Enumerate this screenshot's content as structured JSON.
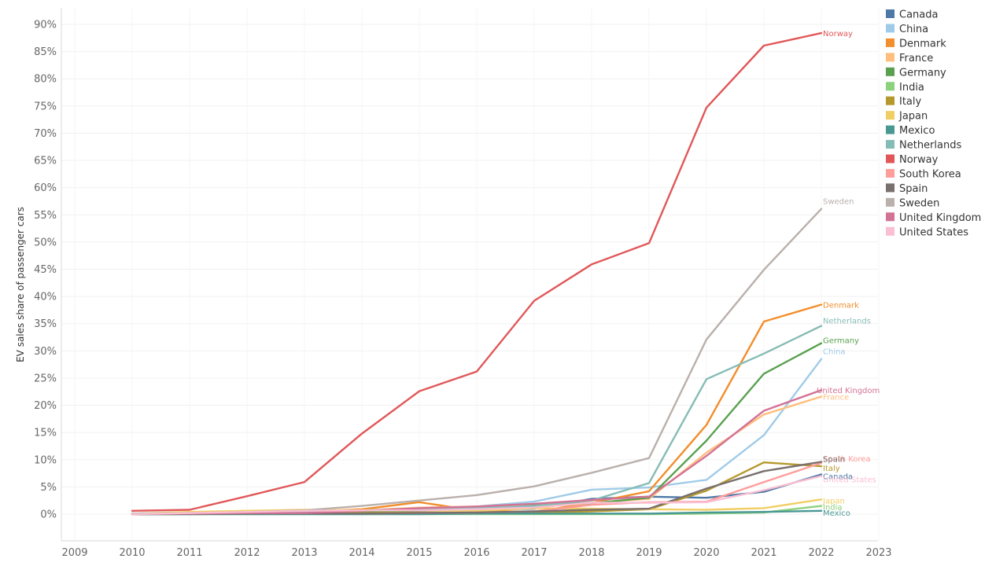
{
  "chart_data": {
    "type": "line",
    "title": "",
    "xlabel": "",
    "ylabel": "EV sales share of passenger cars",
    "xlim": [
      2009,
      2023
    ],
    "ylim": [
      -5,
      90
    ],
    "x_ticks": [
      "2009",
      "2010",
      "2011",
      "2012",
      "2013",
      "2014",
      "2015",
      "2016",
      "2017",
      "2018",
      "2019",
      "2020",
      "2021",
      "2022",
      "2023"
    ],
    "y_ticks": [
      "0%",
      "5%",
      "10%",
      "15%",
      "20%",
      "25%",
      "30%",
      "35%",
      "40%",
      "45%",
      "50%",
      "55%",
      "60%",
      "65%",
      "70%",
      "75%",
      "80%",
      "85%",
      "90%"
    ],
    "legend_position": "top-right",
    "series": [
      {
        "name": "Canada",
        "color": "#4e79a7",
        "x": [
          2011,
          2012,
          2013,
          2014,
          2015,
          2016,
          2017,
          2018,
          2019,
          2020,
          2021,
          2022
        ],
        "values": [
          0.1,
          0.2,
          0.3,
          0.4,
          0.6,
          0.8,
          1.0,
          2.8,
          3.2,
          3.0,
          4.1,
          7.3
        ],
        "end_label": "Canada"
      },
      {
        "name": "China",
        "color": "#a0cbe8",
        "x": [
          2010,
          2011,
          2012,
          2013,
          2014,
          2015,
          2016,
          2017,
          2018,
          2019,
          2020,
          2021,
          2022
        ],
        "values": [
          0.0,
          0.1,
          0.1,
          0.1,
          0.3,
          1.0,
          1.4,
          2.3,
          4.5,
          4.9,
          6.3,
          14.5,
          28.5
        ],
        "end_label": "China"
      },
      {
        "name": "Denmark",
        "color": "#f28e2b",
        "x": [
          2010,
          2011,
          2012,
          2013,
          2014,
          2015,
          2016,
          2017,
          2018,
          2019,
          2020,
          2021,
          2022
        ],
        "values": [
          0.1,
          0.3,
          0.4,
          0.5,
          0.9,
          2.2,
          0.6,
          0.4,
          2.1,
          4.2,
          16.4,
          35.4,
          38.5
        ],
        "end_label": "Denmark"
      },
      {
        "name": "France",
        "color": "#ffbe7d",
        "x": [
          2010,
          2011,
          2012,
          2013,
          2014,
          2015,
          2016,
          2017,
          2018,
          2019,
          2020,
          2021,
          2022
        ],
        "values": [
          0.0,
          0.1,
          0.3,
          0.5,
          0.7,
          1.2,
          1.4,
          1.7,
          2.1,
          2.8,
          11.3,
          18.3,
          21.6
        ],
        "end_label": "France"
      },
      {
        "name": "Germany",
        "color": "#59a14f",
        "x": [
          2010,
          2011,
          2012,
          2013,
          2014,
          2015,
          2016,
          2017,
          2018,
          2019,
          2020,
          2021,
          2022
        ],
        "values": [
          0.0,
          0.1,
          0.1,
          0.2,
          0.4,
          0.7,
          0.7,
          1.6,
          2.0,
          3.0,
          13.5,
          25.8,
          31.4
        ],
        "end_label": "Germany"
      },
      {
        "name": "India",
        "color": "#8cd17d",
        "x": [
          2010,
          2011,
          2012,
          2013,
          2014,
          2015,
          2016,
          2017,
          2018,
          2019,
          2020,
          2021,
          2022
        ],
        "values": [
          0.0,
          0.0,
          0.0,
          0.0,
          0.0,
          0.0,
          0.0,
          0.0,
          0.0,
          0.0,
          0.1,
          0.3,
          1.5
        ],
        "end_label": "India"
      },
      {
        "name": "Italy",
        "color": "#b6992d",
        "x": [
          2010,
          2011,
          2012,
          2013,
          2014,
          2015,
          2016,
          2017,
          2018,
          2019,
          2020,
          2021,
          2022
        ],
        "values": [
          0.0,
          0.1,
          0.1,
          0.1,
          0.2,
          0.3,
          0.3,
          0.3,
          0.5,
          0.9,
          4.3,
          9.5,
          8.8
        ],
        "end_label": "Italy"
      },
      {
        "name": "Japan",
        "color": "#f1ce63",
        "x": [
          2010,
          2011,
          2012,
          2013,
          2014,
          2015,
          2016,
          2017,
          2018,
          2019,
          2020,
          2021,
          2022
        ],
        "values": [
          0.1,
          0.4,
          0.6,
          0.8,
          0.7,
          0.7,
          0.6,
          1.1,
          1.0,
          0.9,
          0.8,
          1.1,
          2.7
        ],
        "end_label": "Japan"
      },
      {
        "name": "Mexico",
        "color": "#499894",
        "x": [
          2010,
          2011,
          2012,
          2013,
          2014,
          2015,
          2016,
          2017,
          2018,
          2019,
          2020,
          2021,
          2022
        ],
        "values": [
          0.0,
          0.0,
          0.0,
          0.0,
          0.0,
          0.0,
          0.1,
          0.1,
          0.1,
          0.1,
          0.3,
          0.4,
          0.6
        ],
        "end_label": "Mexico"
      },
      {
        "name": "Netherlands",
        "color": "#86bcb6",
        "x": [
          2010,
          2011,
          2012,
          2013,
          2014,
          2015,
          2016,
          2017,
          2018,
          2019,
          2020,
          2021,
          2022
        ],
        "values": [
          0.1,
          0.2,
          0.3,
          0.4,
          0.7,
          1.0,
          1.1,
          1.5,
          2.5,
          5.7,
          24.8,
          29.5,
          34.6
        ],
        "end_label": "Netherlands"
      },
      {
        "name": "Norway",
        "color": "#e15759",
        "x": [
          2010,
          2011,
          2012,
          2013,
          2014,
          2015,
          2016,
          2017,
          2018,
          2019,
          2020,
          2021,
          2022
        ],
        "values": [
          0.6,
          0.8,
          3.3,
          5.9,
          14.8,
          22.6,
          26.2,
          39.2,
          45.9,
          49.8,
          74.7,
          86.1,
          88.4
        ],
        "end_label": "Norway"
      },
      {
        "name": "South Korea",
        "color": "#ff9d9a",
        "x": [
          2010,
          2011,
          2012,
          2013,
          2014,
          2015,
          2016,
          2017,
          2018,
          2019,
          2020,
          2021,
          2022
        ],
        "values": [
          0.0,
          0.1,
          0.1,
          0.1,
          0.1,
          0.2,
          0.3,
          0.5,
          1.7,
          2.2,
          2.3,
          5.9,
          9.4
        ],
        "end_label": "South Korea"
      },
      {
        "name": "Spain",
        "color": "#79706e",
        "x": [
          2010,
          2011,
          2012,
          2013,
          2014,
          2015,
          2016,
          2017,
          2018,
          2019,
          2020,
          2021,
          2022
        ],
        "values": [
          0.0,
          0.0,
          0.1,
          0.1,
          0.1,
          0.2,
          0.3,
          0.5,
          0.8,
          1.0,
          4.7,
          7.9,
          9.6
        ],
        "end_label": "Spain"
      },
      {
        "name": "Sweden",
        "color": "#bab0ac",
        "x": [
          2010,
          2011,
          2012,
          2013,
          2014,
          2015,
          2016,
          2017,
          2018,
          2019,
          2020,
          2021,
          2022
        ],
        "values": [
          0.0,
          0.2,
          0.4,
          0.7,
          1.5,
          2.5,
          3.5,
          5.1,
          7.6,
          10.3,
          32.1,
          44.9,
          56.1
        ],
        "end_label": "Sweden"
      },
      {
        "name": "United Kingdom",
        "color": "#d37295",
        "x": [
          2010,
          2011,
          2012,
          2013,
          2014,
          2015,
          2016,
          2017,
          2018,
          2019,
          2020,
          2021,
          2022
        ],
        "values": [
          0.0,
          0.1,
          0.2,
          0.2,
          0.6,
          1.1,
          1.4,
          1.9,
          2.6,
          3.2,
          10.7,
          19.0,
          22.8
        ],
        "end_label": "United Kingdom"
      },
      {
        "name": "United States",
        "color": "#fabfd2",
        "x": [
          2010,
          2011,
          2012,
          2013,
          2014,
          2015,
          2016,
          2017,
          2018,
          2019,
          2020,
          2021,
          2022
        ],
        "values": [
          0.0,
          0.2,
          0.4,
          0.6,
          0.7,
          0.7,
          0.9,
          1.2,
          2.1,
          2.1,
          2.2,
          4.4,
          7.0
        ],
        "end_label": "United States"
      }
    ]
  }
}
